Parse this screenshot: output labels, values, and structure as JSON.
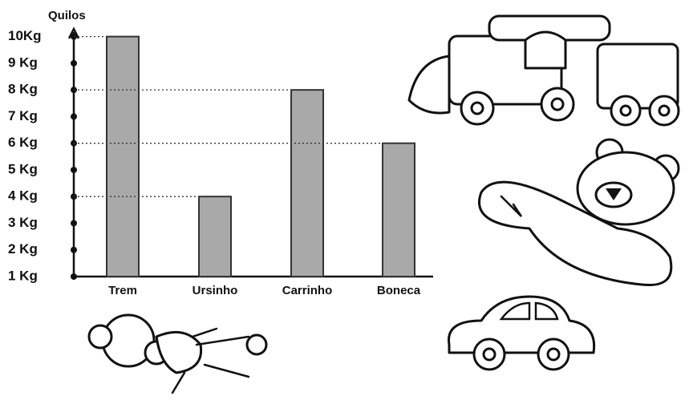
{
  "chart_data": {
    "type": "bar",
    "y_axis_title": "Quilos",
    "categories": [
      "Trem",
      "Ursinho",
      "Carrinho",
      "Boneca"
    ],
    "values": [
      10,
      4,
      8,
      6
    ],
    "color": "#a9a9a9",
    "ylim": [
      1,
      10.5
    ],
    "yticks": [
      {
        "value": 1,
        "label": "1 Kg"
      },
      {
        "value": 2,
        "label": "2 Kg"
      },
      {
        "value": 3,
        "label": "3 Kg"
      },
      {
        "value": 4,
        "label": "4 Kg"
      },
      {
        "value": 5,
        "label": "5 Kg"
      },
      {
        "value": 6,
        "label": "6 Kg"
      },
      {
        "value": 7,
        "label": "7 Kg"
      },
      {
        "value": 8,
        "label": "8 Kg"
      },
      {
        "value": 9,
        "label": "9 Kg"
      },
      {
        "value": 10,
        "label": "10Kg"
      }
    ],
    "leader_lines": true
  }
}
